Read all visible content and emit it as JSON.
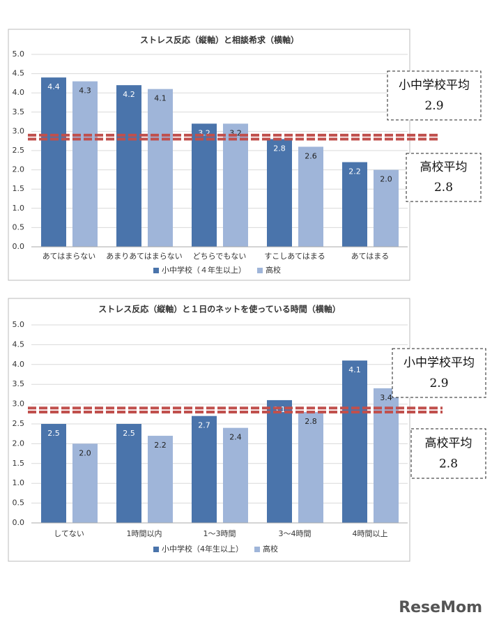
{
  "chart_data": [
    {
      "type": "bar",
      "title": "ストレス反応（縦軸）と相談希求（横軸）",
      "categories": [
        "あてはまらない",
        "あまりあてはまらない",
        "どちらでもない",
        "すこしあてはまる",
        "あてはまる"
      ],
      "series": [
        {
          "name": "小中学校（４年生以上）",
          "color": "#4a74ab",
          "values": [
            4.4,
            4.2,
            3.2,
            2.8,
            2.2
          ],
          "value_labels": [
            "4.4",
            "4.2",
            "3.2",
            "2.8",
            "2.2"
          ]
        },
        {
          "name": "高校",
          "color": "#9fb5d9",
          "values": [
            4.3,
            4.1,
            3.2,
            2.6,
            2.0
          ],
          "value_labels": [
            "4.3",
            "4.1",
            "3.2",
            "2.6",
            "2.0"
          ]
        }
      ],
      "ylim": [
        0,
        5
      ],
      "yticks": [
        {
          "value": 0,
          "label": "0.0"
        },
        {
          "value": 0.5,
          "label": "0.5"
        },
        {
          "value": 1,
          "label": "1.0"
        },
        {
          "value": 1.5,
          "label": "1.5"
        },
        {
          "value": 2,
          "label": "2.0"
        },
        {
          "value": 2.5,
          "label": "2.5"
        },
        {
          "value": 3,
          "label": "3.0"
        },
        {
          "value": 3.5,
          "label": "3.5"
        },
        {
          "value": 4,
          "label": "4.0"
        },
        {
          "value": 4.5,
          "label": "4.5"
        },
        {
          "value": 5,
          "label": "5.0"
        }
      ],
      "grid": true,
      "reference_lines": [
        {
          "label": "小中学校平均",
          "value": 2.9,
          "color": "#c0504d"
        },
        {
          "label": "高校平均",
          "value": 2.8,
          "color": "#c0504d"
        }
      ]
    },
    {
      "type": "bar",
      "title": "ストレス反応（縦軸）と１日のネットを使っている時間（横軸）",
      "categories": [
        "してない",
        "1時間以内",
        "1～3時間",
        "3～4時間",
        "4時間以上"
      ],
      "series": [
        {
          "name": "小中学校（4年生以上）",
          "color": "#4a74ab",
          "values": [
            2.5,
            2.5,
            2.7,
            3.1,
            4.1
          ],
          "value_labels": [
            "2.5",
            "2.5",
            "2.7",
            "3.1",
            "4.1"
          ]
        },
        {
          "name": "高校",
          "color": "#9fb5d9",
          "values": [
            2.0,
            2.2,
            2.4,
            2.8,
            3.4
          ],
          "value_labels": [
            "2.0",
            "2.2",
            "2.4",
            "2.8",
            "3.4"
          ]
        }
      ],
      "ylim": [
        0,
        5
      ],
      "yticks": [
        {
          "value": 0,
          "label": "0.0"
        },
        {
          "value": 0.5,
          "label": "0.5"
        },
        {
          "value": 1,
          "label": "1.0"
        },
        {
          "value": 1.5,
          "label": "1.5"
        },
        {
          "value": 2,
          "label": "2.0"
        },
        {
          "value": 2.5,
          "label": "2.5"
        },
        {
          "value": 3,
          "label": "3.0"
        },
        {
          "value": 3.5,
          "label": "3.5"
        },
        {
          "value": 4,
          "label": "4.0"
        },
        {
          "value": 4.5,
          "label": "4.5"
        },
        {
          "value": 5,
          "label": "5.0"
        }
      ],
      "grid": true,
      "reference_lines": [
        {
          "label": "小中学校平均",
          "value": 2.9,
          "color": "#c0504d"
        },
        {
          "label": "高校平均",
          "value": 2.8,
          "color": "#c0504d"
        }
      ]
    }
  ],
  "watermark": "ReseMom"
}
